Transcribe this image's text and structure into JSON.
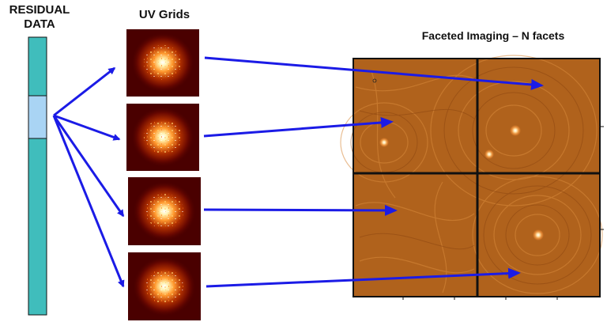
{
  "labels": {
    "residual_line1": "RESIDUAL",
    "residual_line2": "DATA",
    "uv_grids": "UV Grids",
    "faceted_imaging": "Faceted Imaging – N facets"
  },
  "colors": {
    "data_bar": "#40bdbc",
    "data_chunk": "#a9d4f4",
    "arrow": "#1b1be6",
    "uv_background": "#4a0000",
    "facet_background": "#b0621c",
    "facet_divider": "#111111"
  },
  "uv_grid_count": 4,
  "facet_count": 4
}
